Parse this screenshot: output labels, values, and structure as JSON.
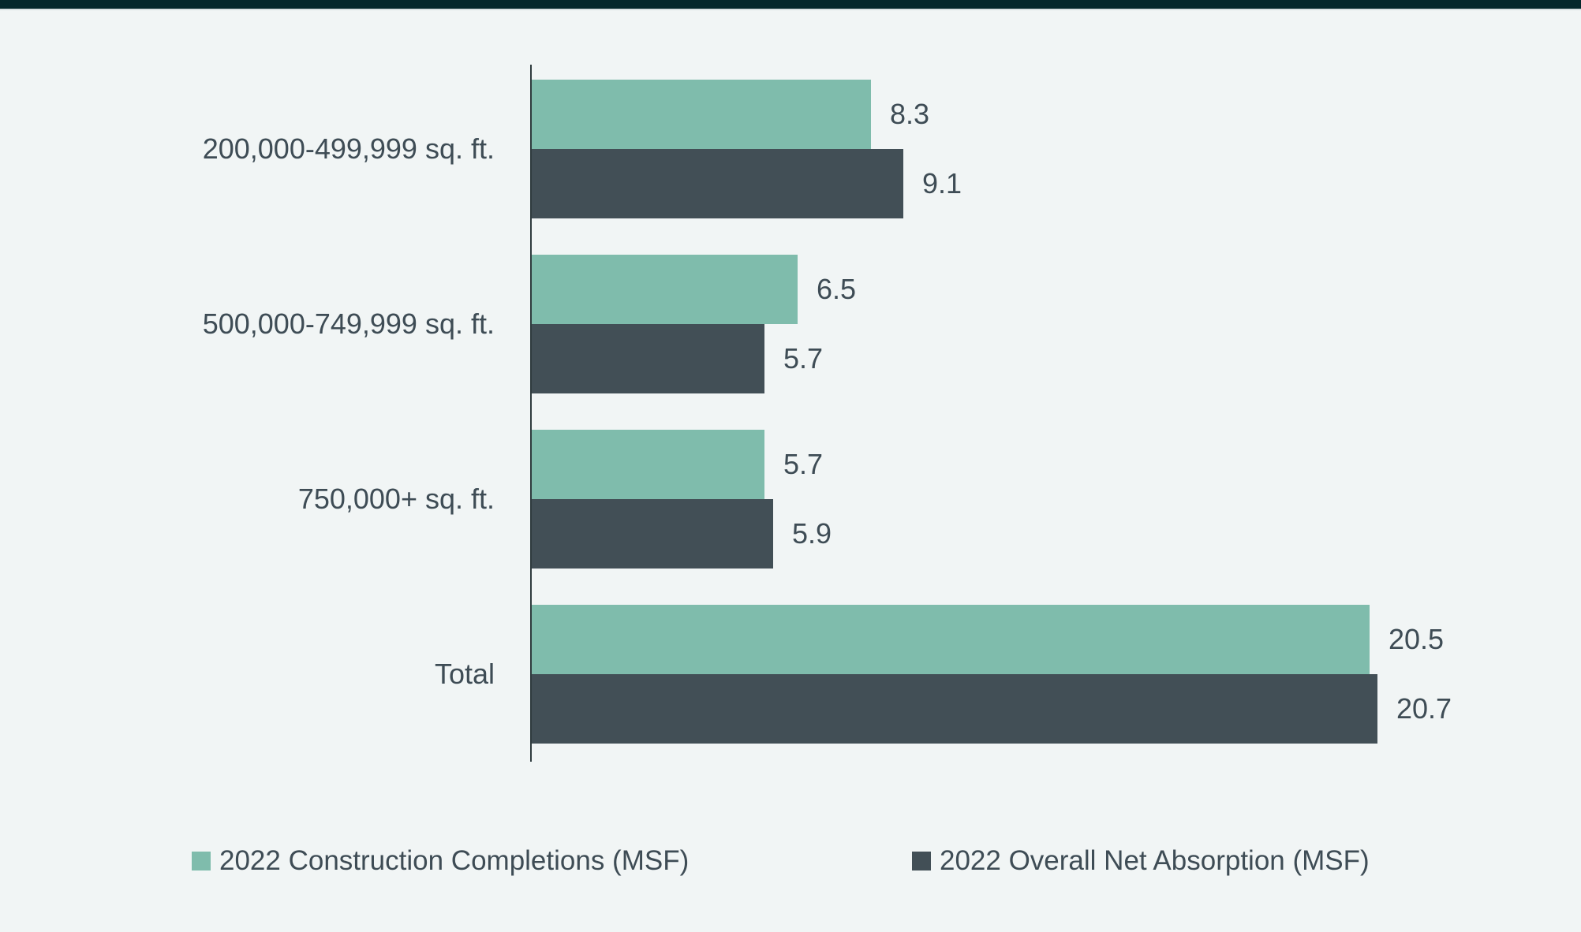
{
  "page": {
    "background_color": "#F1F5F5",
    "top_accent_color": "#03282C"
  },
  "chart_data": {
    "type": "bar",
    "orientation": "horizontal",
    "title": "",
    "categories": [
      "200,000-499,999 sq. ft.",
      "500,000-749,999 sq. ft.",
      "750,000+ sq. ft.",
      "Total"
    ],
    "series": [
      {
        "name": "2022 Construction Completions (MSF)",
        "color": "#7FBCAC",
        "values": [
          8.3,
          6.5,
          5.7,
          20.5
        ]
      },
      {
        "name": "2022 Overall Net Absorption (MSF)",
        "color": "#424F56",
        "values": [
          9.1,
          5.7,
          5.9,
          20.7
        ]
      }
    ],
    "value_labels_shown": true,
    "xlim": [
      0,
      20.7
    ],
    "grid": false,
    "legend_position": "bottom",
    "axis_line_color": "#2F3B3E",
    "label_color": "#3E4C55"
  }
}
